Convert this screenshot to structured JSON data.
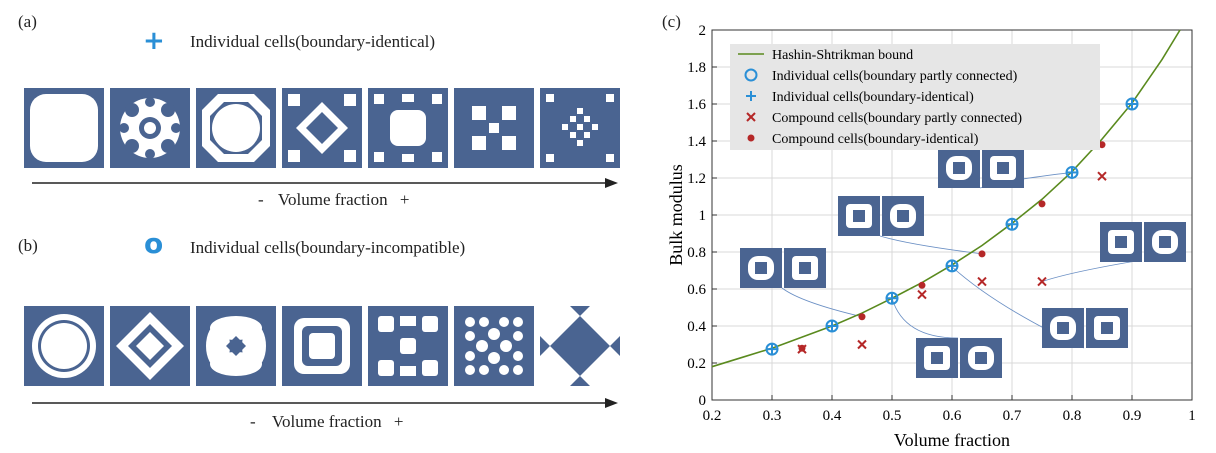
{
  "panel_a": {
    "label": "(a)",
    "marker_symbol": "+",
    "legend": "Individual cells(boundary-identical)",
    "axis_minus": "-",
    "axis_text": "Volume fraction",
    "axis_plus": "+"
  },
  "panel_b": {
    "label": "(b)",
    "marker_symbol": "o",
    "legend": "Individual cells(boundary-incompatible)",
    "axis_minus": "-",
    "axis_text": "Volume fraction",
    "axis_plus": "+"
  },
  "panel_c": {
    "label": "(c)"
  },
  "colors": {
    "cell_fill": "#4a6491",
    "marker_blue": "#2a8fd6",
    "marker_red": "#b52828",
    "curve": "#5a8a1e",
    "legend_bg": "#e6e6e6"
  },
  "chart_data": {
    "type": "scatter",
    "xlabel": "Volume fraction",
    "ylabel": "Bulk modulus",
    "xlim": [
      0.2,
      1.0
    ],
    "ylim": [
      0,
      2.0
    ],
    "xticks": [
      "0.2",
      "0.3",
      "0.4",
      "0.5",
      "0.6",
      "0.7",
      "0.8",
      "0.9",
      "1"
    ],
    "yticks": [
      "0",
      "0.2",
      "0.4",
      "0.6",
      "0.8",
      "1",
      "1.2",
      "1.4",
      "1.6",
      "1.8",
      "2"
    ],
    "grid": true,
    "legend_position": "top-left",
    "series": [
      {
        "name": "Hashin-Shtrikman bound",
        "kind": "line",
        "x": [
          0.2,
          0.25,
          0.3,
          0.35,
          0.4,
          0.45,
          0.5,
          0.55,
          0.6,
          0.65,
          0.7,
          0.75,
          0.8,
          0.85,
          0.9,
          0.95,
          0.98
        ],
        "y": [
          0.18,
          0.23,
          0.28,
          0.34,
          0.4,
          0.47,
          0.55,
          0.635,
          0.73,
          0.835,
          0.955,
          1.085,
          1.235,
          1.41,
          1.605,
          1.84,
          2.0
        ]
      },
      {
        "name": "Individual cells(boundary partly connected)",
        "kind": "circle",
        "x": [
          0.3,
          0.4,
          0.5,
          0.6,
          0.7,
          0.8,
          0.9
        ],
        "y": [
          0.275,
          0.4,
          0.55,
          0.725,
          0.95,
          1.23,
          1.6
        ]
      },
      {
        "name": "Individual cells(boundary-identical)",
        "kind": "plus",
        "x": [
          0.3,
          0.4,
          0.5,
          0.6,
          0.7,
          0.8,
          0.9
        ],
        "y": [
          0.275,
          0.4,
          0.55,
          0.725,
          0.95,
          1.23,
          1.6
        ]
      },
      {
        "name": "Compound cells(boundary partly connected)",
        "kind": "cross",
        "x": [
          0.35,
          0.45,
          0.55,
          0.65,
          0.75,
          0.85
        ],
        "y": [
          0.275,
          0.3,
          0.57,
          0.64,
          0.64,
          1.21
        ]
      },
      {
        "name": "Compound cells(boundary-identical)",
        "kind": "dot",
        "x": [
          0.35,
          0.45,
          0.55,
          0.65,
          0.75,
          0.85
        ],
        "y": [
          0.28,
          0.45,
          0.62,
          0.79,
          1.06,
          1.38
        ]
      }
    ]
  }
}
